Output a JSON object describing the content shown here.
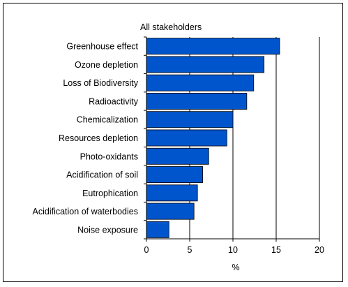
{
  "chart_data": {
    "type": "bar",
    "orientation": "horizontal",
    "title": "All stakeholders",
    "xlabel": "%",
    "ylabel": "",
    "categories": [
      "Greenhouse effect",
      "Ozone depletion",
      "Loss of Biodiversity",
      "Radioactivity",
      "Chemicalization",
      "Resources depletion",
      "Photo-oxidants",
      "Acidification of soil",
      "Eutrophication",
      "Acidification of waterbodies",
      "Noise exposure"
    ],
    "values": [
      15.4,
      13.6,
      12.4,
      11.6,
      10.0,
      9.3,
      7.2,
      6.5,
      5.9,
      5.5,
      2.6
    ],
    "xlim": [
      0,
      20
    ],
    "xticks": [
      0,
      5,
      10,
      15,
      20
    ],
    "grid": "vertical",
    "legend": "none",
    "bar_color": "#0055cc"
  }
}
